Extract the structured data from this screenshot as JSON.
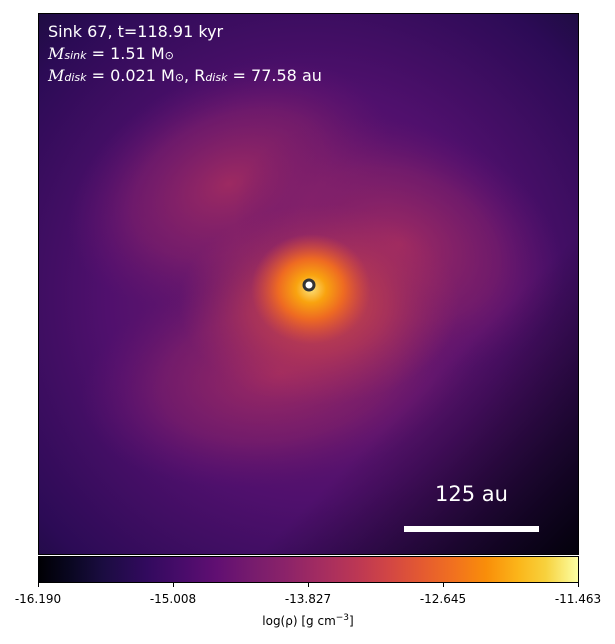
{
  "annotation": {
    "line1": "Sink 67, t=118.91 kyr",
    "sink_mass_label": "M",
    "sink_mass_sub": "sink",
    "sink_mass_value": " = 1.51 M",
    "sun_symbol": "⊙",
    "disk_mass_label": "M",
    "disk_mass_sub": "disk",
    "disk_mass_value": " = 0.021 M",
    "disk_radius_label": ", R",
    "disk_radius_sub": "disk",
    "disk_radius_value": " = 77.58 au"
  },
  "scalebar": {
    "label": "125 au"
  },
  "colorbar": {
    "colormap": "inferno",
    "ticks": [
      "-16.190",
      "-15.008",
      "-13.827",
      "-12.645",
      "-11.463"
    ],
    "label_prefix": "log(ρ) [g cm",
    "label_exp": "−3",
    "label_suffix": "]"
  },
  "sink_marker": {
    "fill": "#ffffff",
    "edge": "#333333"
  }
}
